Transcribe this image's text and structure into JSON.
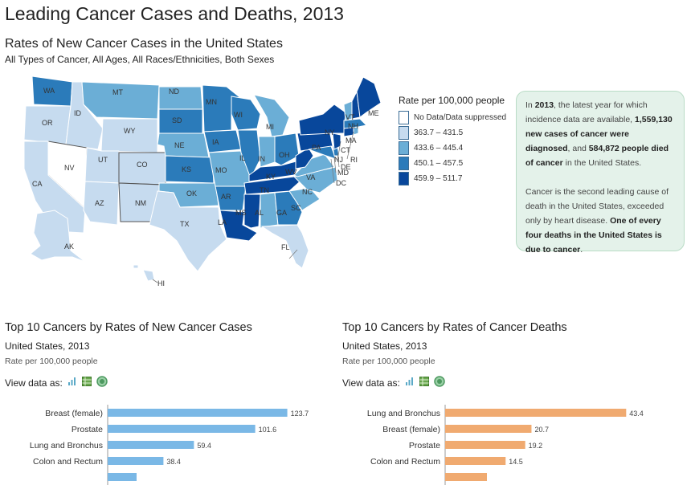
{
  "page": {
    "title": "Leading Cancer Cases and Deaths, 2013"
  },
  "map": {
    "title": "Rates of New Cancer Cases in the United States",
    "subtitle": "All Types of Cancer, All Ages, All Races/Ethnicities, Both Sexes",
    "legend": {
      "title": "Rate per 100,000 people",
      "items": [
        {
          "label": "No Data/Data suppressed",
          "color": "#ffffff"
        },
        {
          "label": "363.7 – 431.5",
          "color": "#c6dbef"
        },
        {
          "label": "433.6 – 445.4",
          "color": "#6baed6"
        },
        {
          "label": "450.1 – 457.5",
          "color": "#2b7bba"
        },
        {
          "label": "459.9 – 511.7",
          "color": "#08479b"
        }
      ]
    },
    "state_labels": [
      "WA",
      "OR",
      "ID",
      "MT",
      "WY",
      "NV",
      "UT",
      "CO",
      "CA",
      "AZ",
      "NM",
      "ND",
      "SD",
      "NE",
      "KS",
      "OK",
      "TX",
      "MN",
      "IA",
      "MO",
      "AR",
      "LA",
      "WI",
      "IL",
      "MI",
      "IN",
      "OH",
      "KY",
      "TN",
      "MS",
      "AL",
      "GA",
      "SC",
      "NC",
      "VA",
      "WV",
      "PA",
      "NY",
      "VT",
      "NH",
      "ME",
      "MA",
      "RI",
      "CT",
      "NJ",
      "DE",
      "MD",
      "DC",
      "FL",
      "AK",
      "HI"
    ]
  },
  "info": {
    "p1": {
      "a": "In ",
      "year": "2013",
      "b": ", the latest year for which incidence data are available, ",
      "cases": "1,559,130 new cases of cancer were diagnosed",
      "c": ", and ",
      "deaths": "584,872 people died of cancer",
      "d": " in the United States."
    },
    "p2": {
      "a": "Cancer is the second leading cause of death in the United States, exceeded only by heart disease. ",
      "b": "One of every four deaths in the United States is due to cancer",
      "c": "."
    }
  },
  "view_label": "View data as:",
  "chart_data": [
    {
      "type": "bar",
      "title": "Top 10 Cancers by Rates of New Cancer Cases",
      "subtitle": "United States, 2013",
      "unit": "Rate per 100,000 people",
      "color": "#7ab8e6",
      "categories": [
        "Breast (female)",
        "Prostate",
        "Lung and Bronchus",
        "Colon and Rectum"
      ],
      "values": [
        123.7,
        101.6,
        59.4,
        38.4
      ],
      "xlim": [
        0,
        135
      ]
    },
    {
      "type": "bar",
      "title": "Top 10 Cancers by Rates of Cancer Deaths",
      "subtitle": "United States, 2013",
      "unit": "Rate per 100,000 people",
      "color": "#f0aa70",
      "categories": [
        "Lung and Bronchus",
        "Breast (female)",
        "Prostate",
        "Colon and Rectum"
      ],
      "values": [
        43.4,
        20.7,
        19.2,
        14.5
      ],
      "xlim": [
        0,
        47
      ]
    }
  ]
}
